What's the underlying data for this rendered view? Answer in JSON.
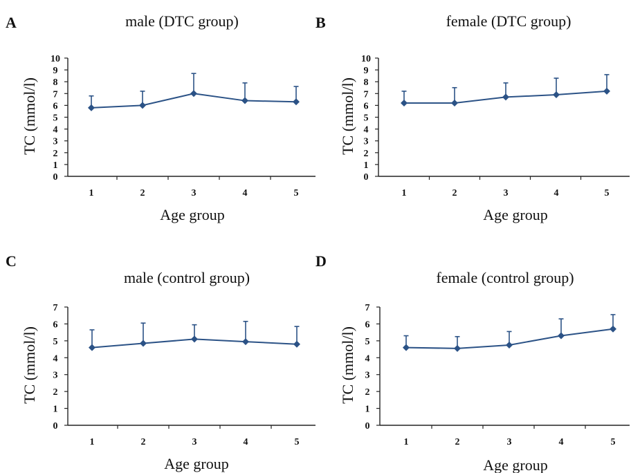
{
  "chart_data": [
    {
      "panel": "A",
      "type": "line",
      "title": "male (DTC group)",
      "xlabel": "Age group",
      "ylabel": "TC (mmol/l)",
      "categories": [
        "1",
        "2",
        "3",
        "4",
        "5"
      ],
      "yticks": [
        "0",
        "1",
        "2",
        "3",
        "4",
        "5",
        "6",
        "7",
        "8",
        "9",
        "10"
      ],
      "ylim": [
        0,
        10
      ],
      "grid": false,
      "series": [
        {
          "values": [
            5.8,
            6.0,
            7.0,
            6.4,
            6.3
          ],
          "error_upper": [
            1.0,
            1.2,
            1.7,
            1.5,
            1.3
          ]
        }
      ],
      "color": "#2b5286"
    },
    {
      "panel": "B",
      "type": "line",
      "title": "female (DTC group)",
      "xlabel": "Age group",
      "ylabel": "TC (mmol/l)",
      "categories": [
        "1",
        "2",
        "3",
        "4",
        "5"
      ],
      "yticks": [
        "0",
        "1",
        "2",
        "3",
        "4",
        "5",
        "6",
        "7",
        "8",
        "9",
        "10"
      ],
      "ylim": [
        0,
        10
      ],
      "grid": false,
      "series": [
        {
          "values": [
            6.2,
            6.2,
            6.7,
            6.9,
            7.2
          ],
          "error_upper": [
            1.0,
            1.3,
            1.2,
            1.4,
            1.4
          ]
        }
      ],
      "color": "#2b5286"
    },
    {
      "panel": "C",
      "type": "line",
      "title": "male (control group)",
      "xlabel": "Age group",
      "ylabel": "TC (mmol/l)",
      "categories": [
        "1",
        "2",
        "3",
        "4",
        "5"
      ],
      "yticks": [
        "0",
        "1",
        "2",
        "3",
        "4",
        "5",
        "6",
        "7"
      ],
      "ylim": [
        0,
        7
      ],
      "grid": false,
      "series": [
        {
          "values": [
            4.6,
            4.85,
            5.1,
            4.95,
            4.8
          ],
          "error_upper": [
            1.05,
            1.2,
            0.85,
            1.2,
            1.05
          ]
        }
      ],
      "color": "#2b5286"
    },
    {
      "panel": "D",
      "type": "line",
      "title": "female (control group)",
      "xlabel": "Age group",
      "ylabel": "TC (mmol/l)",
      "categories": [
        "1",
        "2",
        "3",
        "4",
        "5"
      ],
      "yticks": [
        "0",
        "1",
        "2",
        "3",
        "4",
        "5",
        "6",
        "7"
      ],
      "ylim": [
        0,
        7
      ],
      "grid": false,
      "series": [
        {
          "values": [
            4.6,
            4.55,
            4.75,
            5.3,
            5.7
          ],
          "error_upper": [
            0.7,
            0.7,
            0.8,
            1.0,
            0.85
          ]
        }
      ],
      "color": "#2b5286"
    }
  ]
}
